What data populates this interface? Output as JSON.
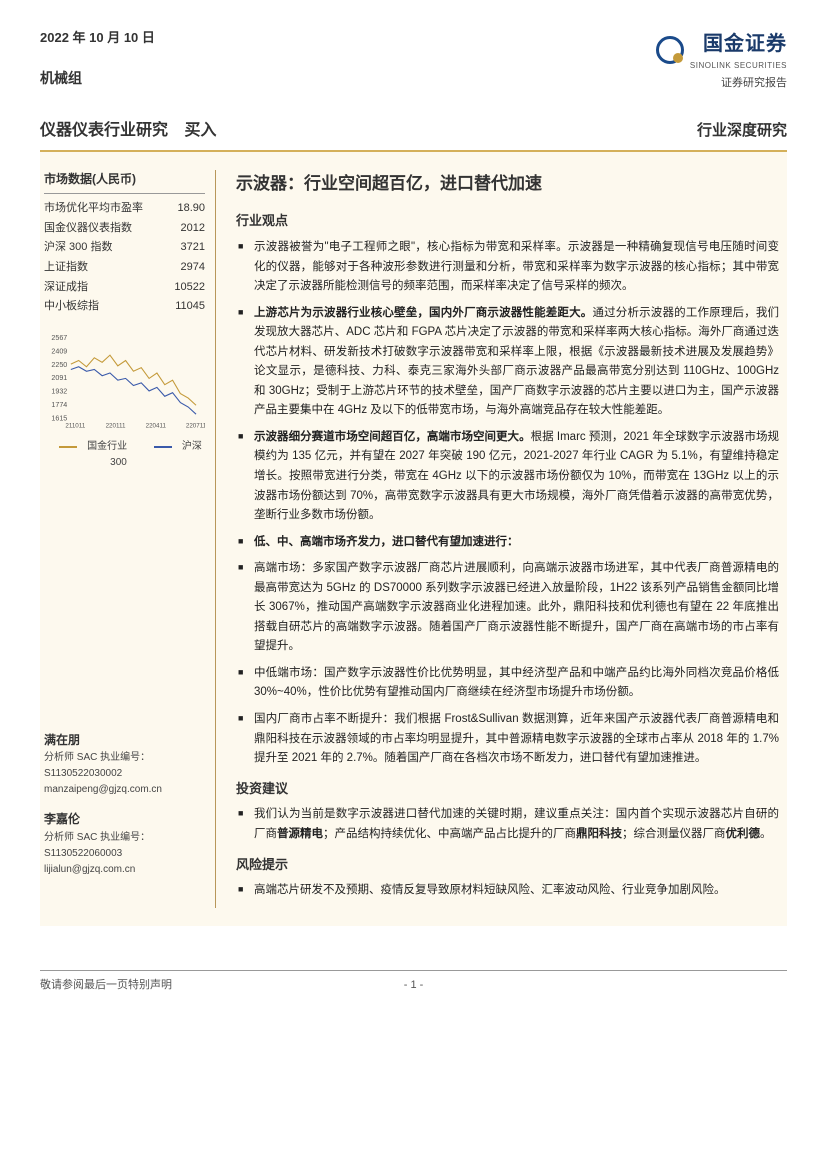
{
  "header": {
    "date": "2022 年 10 月 10 日",
    "group": "机械组",
    "logo_main": "国金证券",
    "logo_sub": "SINOLINK SECURITIES",
    "logo_tag": "证券研究报告"
  },
  "titlebar": {
    "industry": "仪器仪表行业研究",
    "rating": "买入",
    "right": "行业深度研究"
  },
  "sidebar": {
    "market_title": "市场数据(人民币)",
    "rows": [
      {
        "k": "市场优化平均市盈率",
        "v": "18.90"
      },
      {
        "k": "国金仪器仪表指数",
        "v": "2012"
      },
      {
        "k": "沪深 300 指数",
        "v": "3721"
      },
      {
        "k": "上证指数",
        "v": "2974"
      },
      {
        "k": "深证成指",
        "v": "10522"
      },
      {
        "k": "中小板综指",
        "v": "11045"
      }
    ],
    "chart": {
      "ylabels": [
        "2567",
        "2409",
        "2250",
        "2091",
        "1932",
        "1774",
        "1615"
      ],
      "xlabels": [
        "211011",
        "220111",
        "220411",
        "220711"
      ],
      "series": [
        {
          "name": "国金行业",
          "color": "#c49a3a",
          "points": [
            [
              0,
              32
            ],
            [
              10,
              28
            ],
            [
              20,
              35
            ],
            [
              30,
              25
            ],
            [
              40,
              30
            ],
            [
              50,
              22
            ],
            [
              60,
              34
            ],
            [
              70,
              28
            ],
            [
              80,
              40
            ],
            [
              90,
              36
            ],
            [
              100,
              48
            ],
            [
              110,
              42
            ],
            [
              120,
              55
            ],
            [
              130,
              50
            ],
            [
              140,
              65
            ],
            [
              150,
              70
            ],
            [
              160,
              78
            ]
          ]
        },
        {
          "name": "沪深300",
          "color": "#3a5aaa",
          "points": [
            [
              0,
              38
            ],
            [
              10,
              35
            ],
            [
              20,
              40
            ],
            [
              30,
              38
            ],
            [
              40,
              45
            ],
            [
              50,
              42
            ],
            [
              60,
              50
            ],
            [
              70,
              48
            ],
            [
              80,
              56
            ],
            [
              90,
              53
            ],
            [
              100,
              62
            ],
            [
              110,
              58
            ],
            [
              120,
              68
            ],
            [
              130,
              64
            ],
            [
              140,
              75
            ],
            [
              150,
              80
            ],
            [
              160,
              88
            ]
          ]
        }
      ],
      "legend_a": "国金行业",
      "legend_b": "沪深300"
    },
    "analysts": [
      {
        "name": "满在朋",
        "sac_label": "分析师 SAC 执业编号：",
        "sac": "S1130522030002",
        "email": "manzaipeng@gjzq.com.cn"
      },
      {
        "name": "李嘉伦",
        "sac_label": "分析师 SAC 执业编号：",
        "sac": "S1130522060003",
        "email": "lijialun@gjzq.com.cn"
      }
    ]
  },
  "main": {
    "title": "示波器：行业空间超百亿，进口替代加速",
    "sections": [
      {
        "heading": "行业观点",
        "items": [
          {
            "lead": "",
            "text": "示波器被誉为\"电子工程师之眼\"，核心指标为带宽和采样率。示波器是一种精确复现信号电压随时间变化的仪器，能够对于各种波形参数进行测量和分析，带宽和采样率为数字示波器的核心指标；其中带宽决定了示波器所能检测信号的频率范围，而采样率决定了信号采样的频次。"
          },
          {
            "lead": "上游芯片为示波器行业核心壁垒，国内外厂商示波器性能差距大。",
            "text": "通过分析示波器的工作原理后，我们发现放大器芯片、ADC 芯片和 FGPA 芯片决定了示波器的带宽和采样率两大核心指标。海外厂商通过迭代芯片材料、研发新技术打破数字示波器带宽和采样率上限，根据《示波器最新技术进展及发展趋势》论文显示，是德科技、力科、泰克三家海外头部厂商示波器产品最高带宽分别达到 110GHz、100GHz 和 30GHz；受制于上游芯片环节的技术壁垒，国产厂商数字示波器的芯片主要以进口为主，国产示波器产品主要集中在 4GHz 及以下的低带宽市场，与海外高端竞品存在较大性能差距。"
          },
          {
            "lead": "示波器细分赛道市场空间超百亿，高端市场空间更大。",
            "text": "根据 Imarc 预测，2021 年全球数字示波器市场规模约为 135 亿元，并有望在 2027 年突破 190 亿元，2021-2027 年行业 CAGR 为 5.1%，有望维持稳定增长。按照带宽进行分类，带宽在 4GHz 以下的示波器市场份额仅为 10%，而带宽在 13GHz 以上的示波器市场份额达到 70%，高带宽数字示波器具有更大市场规模，海外厂商凭借着示波器的高带宽优势，垄断行业多数市场份额。"
          },
          {
            "lead": "低、中、高端市场齐发力，进口替代有望加速进行：",
            "text": ""
          },
          {
            "lead": "",
            "text": "高端市场：多家国产数字示波器厂商芯片进展顺利，向高端示波器市场进军，其中代表厂商普源精电的最高带宽达为 5GHz 的 DS70000 系列数字示波器已经进入放量阶段，1H22 该系列产品销售金额同比增长 3067%，推动国产高端数字示波器商业化进程加速。此外，鼎阳科技和优利德也有望在 22 年底推出搭载自研芯片的高端数字示波器。随着国产厂商示波器性能不断提升，国产厂商在高端市场的市占率有望提升。"
          },
          {
            "lead": "",
            "text": "中低端市场：国产数字示波器性价比优势明显，其中经济型产品和中端产品约比海外同档次竞品价格低 30%~40%，性价比优势有望推动国内厂商继续在经济型市场提升市场份额。"
          },
          {
            "lead": "",
            "text": "国内厂商市占率不断提升：我们根据 Frost&Sullivan 数据测算，近年来国产示波器代表厂商普源精电和鼎阳科技在示波器领域的市占率均明显提升，其中普源精电数字示波器的全球市占率从 2018 年的 1.7%提升至 2021 年的 2.7%。随着国产厂商在各档次市场不断发力，进口替代有望加速推进。"
          }
        ]
      },
      {
        "heading": "投资建议",
        "items": [
          {
            "lead": "",
            "text": "我们认为当前是数字示波器进口替代加速的关键时期，建议重点关注：国内首个实现示波器芯片自研的厂商<b>普源精电</b>；产品结构持续优化、中高端产品占比提升的厂商<b>鼎阳科技</b>；综合测量仪器厂商<b>优利德</b>。"
          }
        ]
      },
      {
        "heading": "风险提示",
        "items": [
          {
            "lead": "",
            "text": "高端芯片研发不及预期、疫情反复导致原材料短缺风险、汇率波动风险、行业竞争加剧风险。"
          }
        ]
      }
    ]
  },
  "footer": {
    "disclaimer": "敬请参阅最后一页特别声明",
    "page": "- 1 -"
  }
}
